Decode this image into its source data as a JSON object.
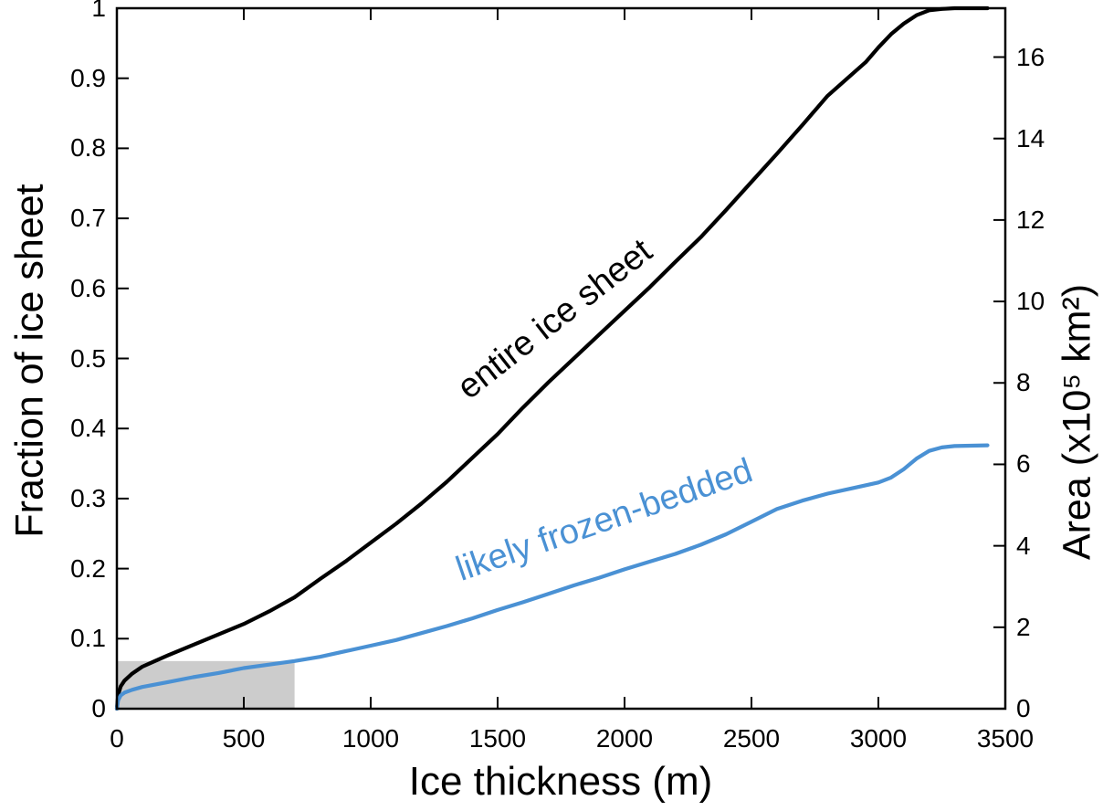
{
  "figure": {
    "background": "#ffffff",
    "accent_blue": "#4a91d4",
    "shaded_region_color": "#cccccc"
  },
  "chart_data": {
    "type": "line",
    "title": "",
    "xlabel": "Ice thickness (m)",
    "ylabel_left": "Fraction of ice sheet",
    "ylabel_right": "Area (x10⁵ km²)",
    "xlim": [
      0,
      3500
    ],
    "ylim_left": [
      0,
      1
    ],
    "ylim_right": [
      0,
      17.2
    ],
    "grid": false,
    "legend_position": "inline rotated labels on curves",
    "xtick_values": [
      0,
      500,
      1000,
      1500,
      2000,
      2500,
      3000,
      3500
    ],
    "xtick_labels": [
      "0",
      "500",
      "1000",
      "1500",
      "2000",
      "2500",
      "3000",
      "3500"
    ],
    "ytick_left_values": [
      0,
      0.1,
      0.2,
      0.3,
      0.4,
      0.5,
      0.6,
      0.7,
      0.8,
      0.9,
      1
    ],
    "ytick_left_labels": [
      "0",
      "0.1",
      "0.2",
      "0.3",
      "0.4",
      "0.5",
      "0.6",
      "0.7",
      "0.8",
      "0.9",
      "1"
    ],
    "ytick_right_values": [
      0,
      2,
      4,
      6,
      8,
      10,
      12,
      14,
      16
    ],
    "ytick_right_labels": [
      "0",
      "2",
      "4",
      "6",
      "8",
      "10",
      "12",
      "14",
      "16"
    ],
    "shaded_region": {
      "x0": 0,
      "x1": 700,
      "y0": 0,
      "y1": 0.068,
      "color": "#cccccc"
    },
    "series": [
      {
        "id": "entire-ice-sheet",
        "name": "entire ice sheet",
        "color": "#000000",
        "x": [
          0,
          5,
          15,
          30,
          60,
          100,
          150,
          200,
          300,
          400,
          500,
          600,
          700,
          800,
          900,
          1000,
          1100,
          1200,
          1300,
          1400,
          1500,
          1600,
          1700,
          1800,
          1900,
          2000,
          2100,
          2200,
          2300,
          2400,
          2500,
          2600,
          2700,
          2800,
          2900,
          2950,
          3000,
          3050,
          3100,
          3150,
          3200,
          3250,
          3300,
          3400,
          3430
        ],
        "y": [
          0,
          0.02,
          0.032,
          0.04,
          0.05,
          0.06,
          0.068,
          0.076,
          0.091,
          0.106,
          0.121,
          0.139,
          0.159,
          0.185,
          0.21,
          0.237,
          0.264,
          0.293,
          0.324,
          0.358,
          0.392,
          0.43,
          0.466,
          0.5,
          0.534,
          0.568,
          0.602,
          0.638,
          0.673,
          0.712,
          0.752,
          0.792,
          0.833,
          0.875,
          0.907,
          0.923,
          0.944,
          0.963,
          0.978,
          0.99,
          0.997,
          0.999,
          1,
          1,
          1
        ]
      },
      {
        "id": "likely-frozen-bedded",
        "name": "likely frozen-bedded",
        "color": "#4a91d4",
        "x": [
          0,
          5,
          15,
          30,
          60,
          100,
          200,
          300,
          400,
          500,
          600,
          700,
          800,
          900,
          1000,
          1100,
          1200,
          1300,
          1400,
          1500,
          1600,
          1700,
          1800,
          1900,
          2000,
          2100,
          2200,
          2300,
          2400,
          2500,
          2600,
          2700,
          2800,
          2900,
          3000,
          3050,
          3100,
          3150,
          3200,
          3250,
          3300,
          3430
        ],
        "y": [
          0,
          0.012,
          0.019,
          0.023,
          0.027,
          0.031,
          0.038,
          0.045,
          0.051,
          0.058,
          0.063,
          0.068,
          0.074,
          0.082,
          0.09,
          0.098,
          0.108,
          0.118,
          0.129,
          0.141,
          0.152,
          0.164,
          0.176,
          0.187,
          0.199,
          0.21,
          0.221,
          0.234,
          0.249,
          0.267,
          0.285,
          0.297,
          0.307,
          0.315,
          0.323,
          0.33,
          0.342,
          0.357,
          0.368,
          0.373,
          0.375,
          0.376
        ]
      }
    ]
  }
}
